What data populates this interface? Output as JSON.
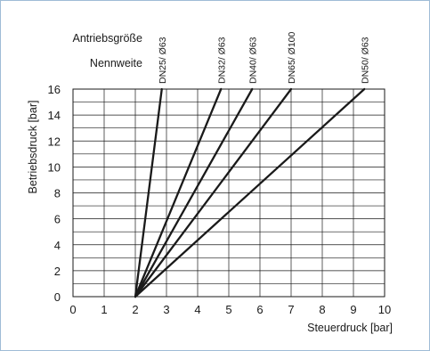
{
  "chart_data": {
    "type": "line",
    "header_label_1": "Antriebsgröße",
    "header_label_2": "Nennweite",
    "xlabel": "Steuerdruck [bar]",
    "ylabel": "Betriebsdruck [bar]",
    "xlim": [
      0,
      10
    ],
    "ylim": [
      0,
      16
    ],
    "x_ticks": [
      "0",
      "1",
      "2",
      "3",
      "4",
      "5",
      "6",
      "7",
      "8",
      "9",
      "10"
    ],
    "y_ticks": [
      "0",
      "2",
      "4",
      "6",
      "8",
      "10",
      "12",
      "14",
      "16"
    ],
    "grid": true,
    "series": [
      {
        "name": "DN25/ Ø63",
        "x": [
          2,
          2.85
        ],
        "y": [
          0,
          16
        ]
      },
      {
        "name": "DN32/ Ø63",
        "x": [
          2,
          4.75
        ],
        "y": [
          0,
          16
        ]
      },
      {
        "name": "DN40/ Ø63",
        "x": [
          2,
          5.75
        ],
        "y": [
          0,
          16
        ]
      },
      {
        "name": "DN65/ Ø100",
        "x": [
          2,
          7.0
        ],
        "y": [
          0,
          16
        ]
      },
      {
        "name": "DN50/ Ø63",
        "x": [
          2,
          9.35
        ],
        "y": [
          0,
          16
        ]
      }
    ],
    "colors": {
      "line": "#1a1a1a",
      "grid": "#1a1a1a",
      "border": "#9fbcd6"
    }
  }
}
